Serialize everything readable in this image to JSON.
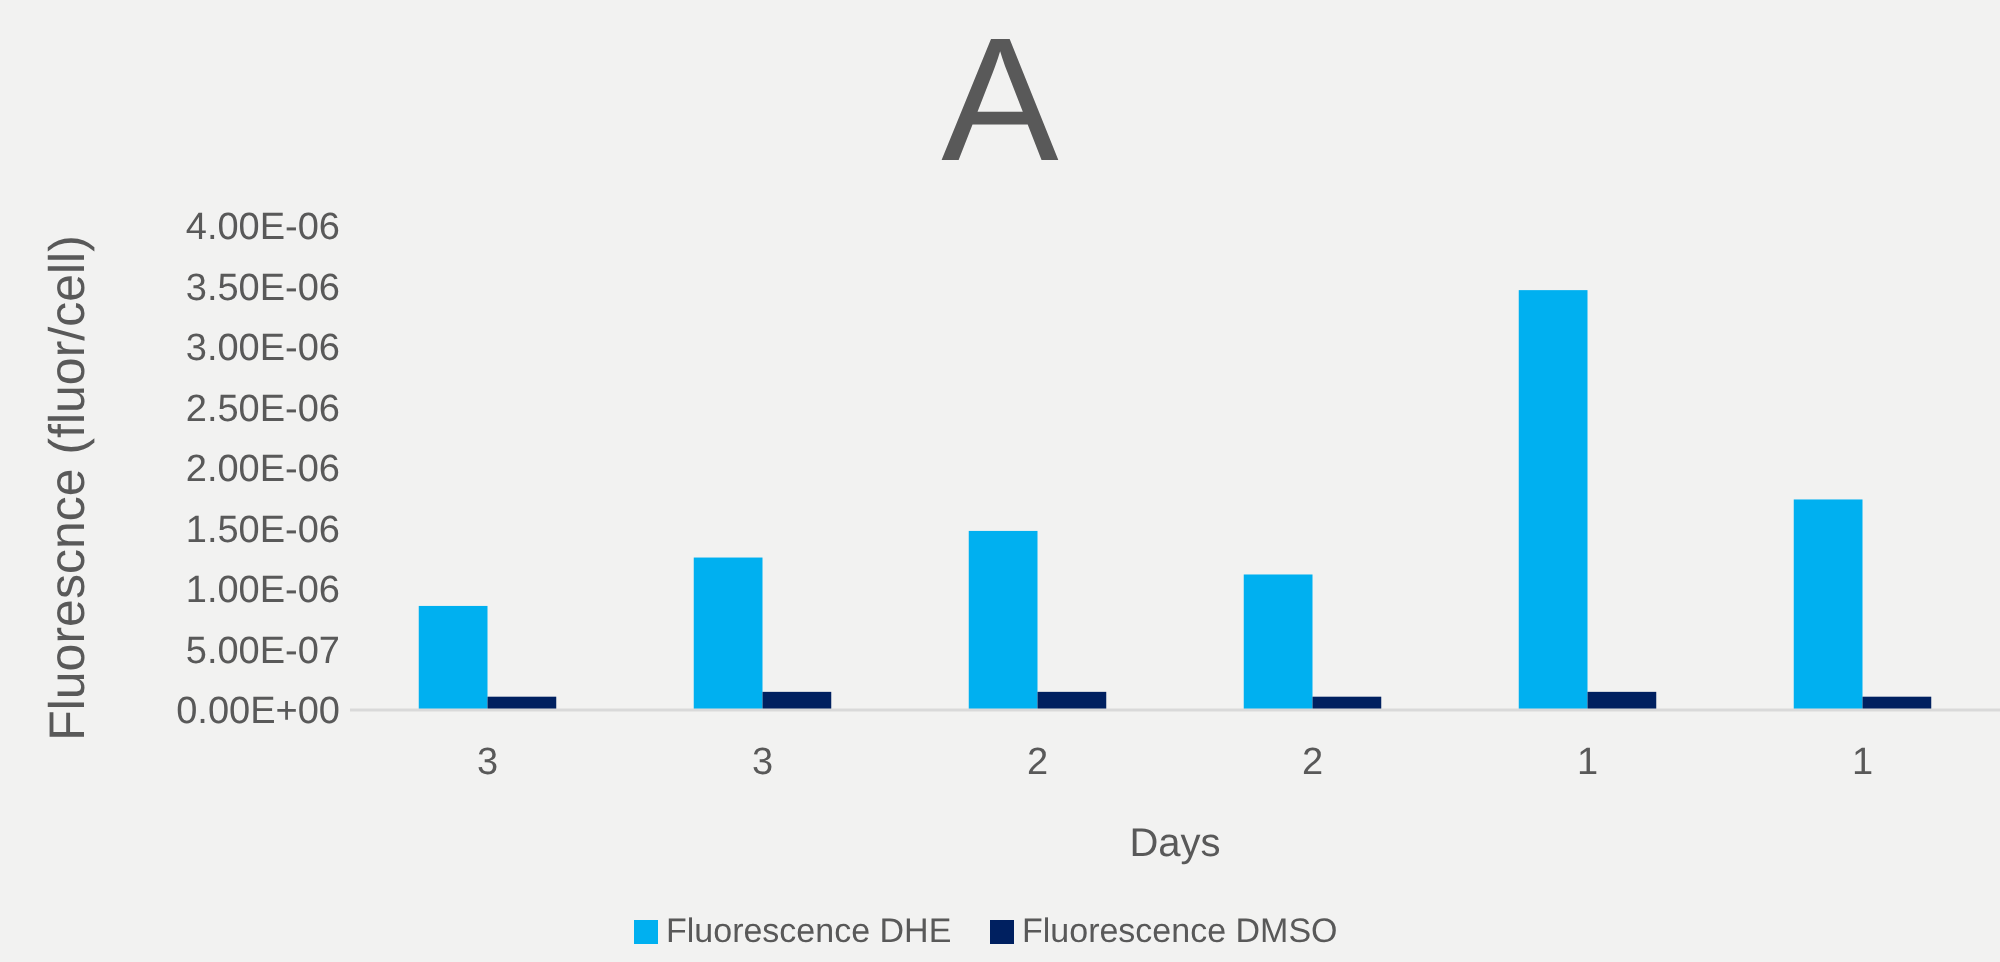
{
  "chart_data": {
    "type": "bar",
    "title": "A",
    "xlabel": "Days",
    "ylabel": "Fluorescnce (fluor/cell)",
    "categories": [
      "3",
      "3",
      "2",
      "2",
      "1",
      "1"
    ],
    "series": [
      {
        "name": "Fluorescence DHE",
        "color": "#00b0f0",
        "values": [
          8.6e-07,
          1.26e-06,
          1.48e-06,
          1.12e-06,
          3.47e-06,
          1.74e-06
        ]
      },
      {
        "name": "Fluorescence DMSO",
        "color": "#002060",
        "values": [
          1.1e-07,
          1.5e-07,
          1.5e-07,
          1.1e-07,
          1.5e-07,
          1.1e-07
        ]
      }
    ],
    "ylim": [
      0,
      4e-06
    ],
    "yticks": [
      {
        "value": 0,
        "label": "0.00E+00"
      },
      {
        "value": 5e-07,
        "label": "5.00E-07"
      },
      {
        "value": 1e-06,
        "label": "1.00E-06"
      },
      {
        "value": 1.5e-06,
        "label": "1.50E-06"
      },
      {
        "value": 2e-06,
        "label": "2.00E-06"
      },
      {
        "value": 2.5e-06,
        "label": "2.50E-06"
      },
      {
        "value": 3e-06,
        "label": "3.00E-06"
      },
      {
        "value": 3.5e-06,
        "label": "3.50E-06"
      },
      {
        "value": 4e-06,
        "label": "4.00E-06"
      }
    ],
    "grid": false,
    "legend": "bottom"
  }
}
